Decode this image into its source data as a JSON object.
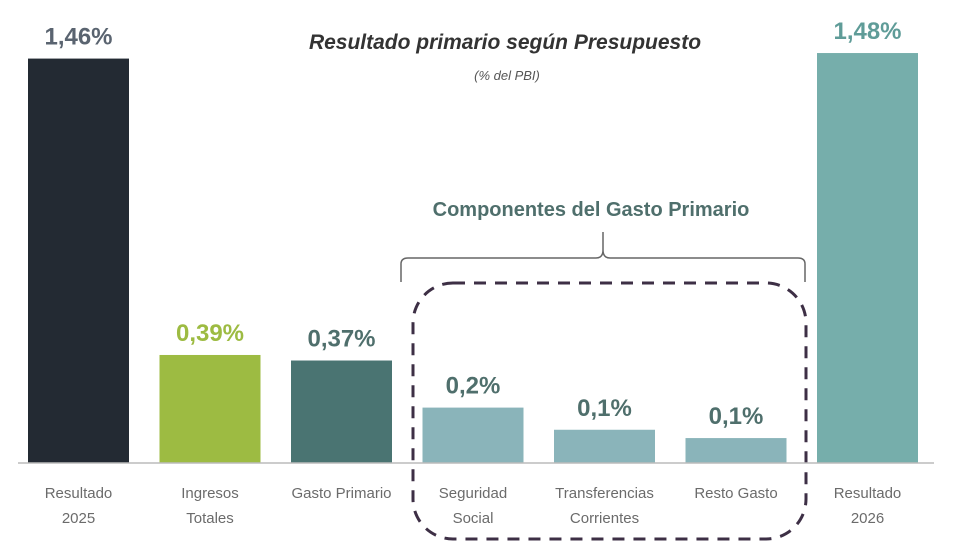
{
  "chart_data": {
    "type": "bar",
    "title": "Resultado primario según Presupuesto",
    "subtitle": "(% del PBI)",
    "annotation": "Componentes del Gasto Primario",
    "categories": [
      [
        "Resultado",
        "2025"
      ],
      [
        "Ingresos",
        "Totales"
      ],
      [
        "Gasto Primario"
      ],
      [
        "Seguridad",
        "Social"
      ],
      [
        "Transferencias",
        "Corrientes"
      ],
      [
        "Resto Gasto"
      ],
      [
        "Resultado",
        "2026"
      ]
    ],
    "values": [
      1.46,
      0.39,
      0.37,
      0.2,
      0.12,
      0.09,
      1.48
    ],
    "data_labels": [
      "1,46%",
      "0,39%",
      "0,37%",
      "0,2%",
      "0,1%",
      "0,1%",
      "1,48%"
    ],
    "colors": [
      "#232a33",
      "#9dbb42",
      "#4a7472",
      "#8ab4ba",
      "#8ab4ba",
      "#8ab4ba",
      "#76aeab"
    ],
    "label_colors": [
      "#5a6470",
      "#9dbb42",
      "#4f6f6c",
      "#4f6f6c",
      "#4f6f6c",
      "#4f6f6c",
      "#5f9c98"
    ],
    "ylim": [
      0,
      1.5
    ],
    "grid": false,
    "legend": "none"
  }
}
